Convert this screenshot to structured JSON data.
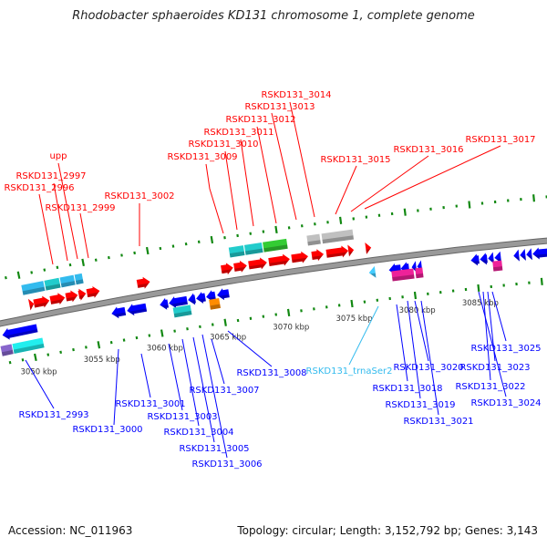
{
  "title": "Rhodobacter sphaeroides KD131 chromosome 1, complete genome",
  "footer": {
    "accession": "Accession: NC_011963",
    "topology": "Topology: circular; Length: 3,152,792 bp; Genes: 3,143"
  },
  "colors": {
    "forward_label": "#ff0000",
    "reverse_label": "#0000ff",
    "trna_label": "#33bbee",
    "backbone": "#888888",
    "tick": "#118811"
  },
  "scale_labels": [
    "3050 kbp",
    "3055 kbp",
    "3060 kbp",
    "3065 kbp",
    "3070 kbp",
    "3075 kbp",
    "3080 kbp",
    "3085 kbp"
  ],
  "forward_labels": [
    "RSKD131_3014",
    "RSKD131_3013",
    "RSKD131_3012",
    "RSKD131_3011",
    "RSKD131_3010",
    "RSKD131_3009",
    "RSKD131_3002",
    "upp",
    "RSKD131_2997",
    "RSKD131_2996",
    "RSKD131_2999",
    "RSKD131_3015",
    "RSKD131_3016",
    "RSKD131_3017"
  ],
  "reverse_labels": [
    "RSKD131_2993",
    "RSKD131_3000",
    "RSKD131_3001",
    "RSKD131_3003",
    "RSKD131_3004",
    "RSKD131_3005",
    "RSKD131_3006",
    "RSKD131_3007",
    "RSKD131_3008",
    "RSKD131_3018",
    "RSKD131_3019",
    "RSKD131_3020",
    "RSKD131_3021",
    "RSKD131_3025",
    "RSKD131_3023",
    "RSKD131_3022",
    "RSKD131_3024"
  ],
  "trna_labels": [
    "RSKD131_trnaSer2"
  ]
}
